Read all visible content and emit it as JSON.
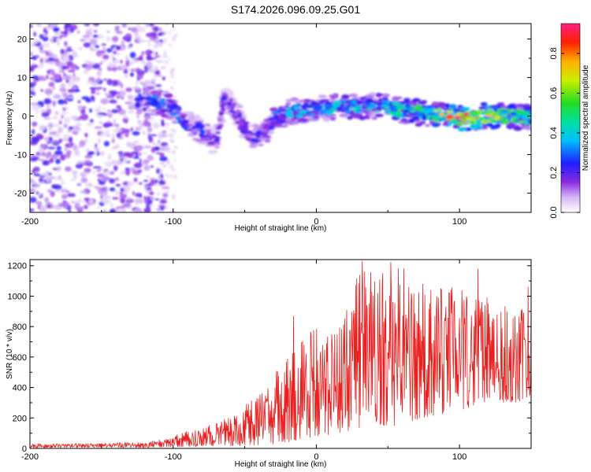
{
  "title": "S174.2026.096.09.25.G01",
  "colors": {
    "snr_line": "#e8201f",
    "axis": "#000000",
    "background": "#ffffff"
  },
  "chart_data": [
    {
      "type": "heatmap",
      "name": "spectrogram",
      "xlabel": "Height of straight line (km)",
      "ylabel": "Frequency (Hz)",
      "xlim": [
        -200,
        150
      ],
      "ylim": [
        -25,
        24
      ],
      "xticks": [
        -200,
        -100,
        0,
        100
      ],
      "yticks": [
        -20,
        -10,
        0,
        10,
        20
      ],
      "colorbar": {
        "label": "Normalized spectral amplitude",
        "range": [
          0.0,
          0.95
        ],
        "ticks": [
          0.0,
          0.2,
          0.4,
          0.6,
          0.8
        ],
        "colormap": "rainbow (violet to magenta)"
      },
      "noise_region_km": [
        -200,
        -105
      ],
      "ridge": [
        {
          "x": -125,
          "f": 4.0,
          "amp": 0.25
        },
        {
          "x": -110,
          "f": 3.5,
          "amp": 0.3
        },
        {
          "x": -100,
          "f": 2.0,
          "amp": 0.3
        },
        {
          "x": -90,
          "f": -2.0,
          "amp": 0.25
        },
        {
          "x": -80,
          "f": -4.0,
          "amp": 0.25
        },
        {
          "x": -70,
          "f": -7.0,
          "amp": 0.2
        },
        {
          "x": -64,
          "f": 5.0,
          "amp": 0.2
        },
        {
          "x": -55,
          "f": 0.0,
          "amp": 0.2
        },
        {
          "x": -45,
          "f": -6.0,
          "amp": 0.2
        },
        {
          "x": -35,
          "f": -4.0,
          "amp": 0.25
        },
        {
          "x": -30,
          "f": -1.0,
          "amp": 0.3
        },
        {
          "x": -20,
          "f": 1.0,
          "amp": 0.35
        },
        {
          "x": 0,
          "f": 2.0,
          "amp": 0.35
        },
        {
          "x": 20,
          "f": 2.5,
          "amp": 0.4
        },
        {
          "x": 45,
          "f": 2.5,
          "amp": 0.4
        },
        {
          "x": 60,
          "f": 1.5,
          "amp": 0.45
        },
        {
          "x": 80,
          "f": 0.5,
          "amp": 0.55
        },
        {
          "x": 100,
          "f": -0.5,
          "amp": 0.9
        },
        {
          "x": 120,
          "f": 0.0,
          "amp": 0.7
        },
        {
          "x": 135,
          "f": 0.0,
          "amp": 0.55
        },
        {
          "x": 150,
          "f": -0.5,
          "amp": 0.45
        }
      ]
    },
    {
      "type": "line",
      "name": "snr",
      "xlabel": "Height of straight line (km)",
      "ylabel": "SNR (10 * v/v)",
      "xlim": [
        -200,
        150
      ],
      "ylim": [
        0,
        1240
      ],
      "xticks": [
        -200,
        -100,
        0,
        100
      ],
      "yticks": [
        0,
        200,
        400,
        600,
        800,
        1000,
        1200
      ],
      "envelope": [
        {
          "x": -200,
          "lo": 5,
          "hi": 30
        },
        {
          "x": -150,
          "lo": 5,
          "hi": 35
        },
        {
          "x": -120,
          "lo": 5,
          "hi": 40
        },
        {
          "x": -100,
          "lo": 10,
          "hi": 80
        },
        {
          "x": -90,
          "lo": 10,
          "hi": 120
        },
        {
          "x": -80,
          "lo": 10,
          "hi": 130
        },
        {
          "x": -60,
          "lo": 15,
          "hi": 220
        },
        {
          "x": -40,
          "lo": 20,
          "hi": 350
        },
        {
          "x": -25,
          "lo": 30,
          "hi": 550
        },
        {
          "x": -15,
          "lo": 50,
          "hi": 700
        },
        {
          "x": 0,
          "lo": 80,
          "hi": 800
        },
        {
          "x": 20,
          "lo": 100,
          "hi": 1050
        },
        {
          "x": 35,
          "lo": 150,
          "hi": 1200
        },
        {
          "x": 55,
          "lo": 150,
          "hi": 1220
        },
        {
          "x": 75,
          "lo": 200,
          "hi": 1100
        },
        {
          "x": 100,
          "lo": 250,
          "hi": 1050
        },
        {
          "x": 120,
          "lo": 300,
          "hi": 1000
        },
        {
          "x": 140,
          "lo": 300,
          "hi": 900
        },
        {
          "x": 150,
          "lo": 350,
          "hi": 1050
        }
      ],
      "peaks": [
        {
          "x": -16,
          "y": 870
        },
        {
          "x": 32,
          "y": 1230
        },
        {
          "x": 52,
          "y": 1225
        },
        {
          "x": 113,
          "y": 1180
        },
        {
          "x": 148,
          "y": 1060
        }
      ]
    }
  ]
}
